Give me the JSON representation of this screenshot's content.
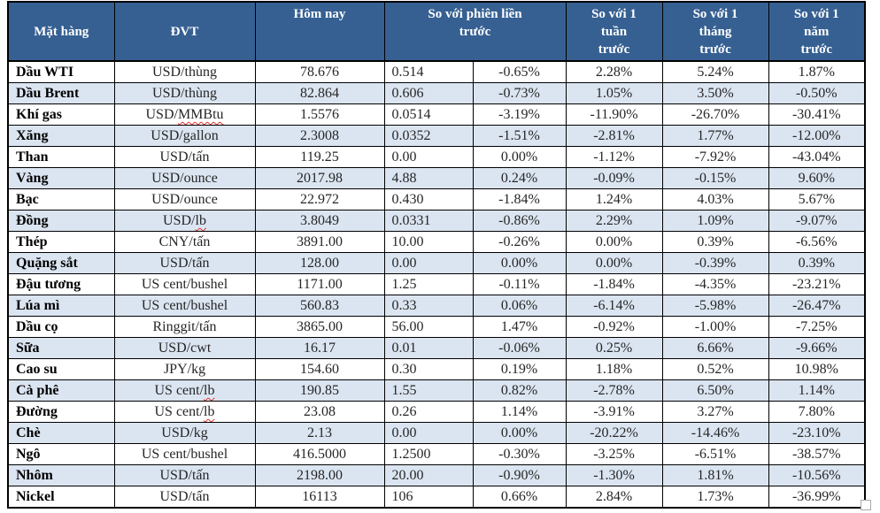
{
  "colors": {
    "header_bg": "#366092",
    "header_text": "#ffffff",
    "stripe_bg": "#dbe5f1",
    "row_bg": "#ffffff",
    "border": "#000000",
    "text": "#262626",
    "squiggle": "#e03030"
  },
  "table": {
    "columns": [
      {
        "key": "name",
        "label": "Mặt hàng",
        "colspan": 1,
        "valign": "middle"
      },
      {
        "key": "unit",
        "label": "ĐVT",
        "colspan": 1,
        "valign": "middle"
      },
      {
        "key": "today",
        "label": "Hôm nay",
        "colspan": 1,
        "valign": "top"
      },
      {
        "key": "change",
        "label": "So với phiên liền\ntrước",
        "colspan": 2,
        "valign": "top"
      },
      {
        "key": "week",
        "label": "So với 1\ntuần\ntrước",
        "colspan": 1,
        "valign": "top"
      },
      {
        "key": "month",
        "label": "So với 1\ntháng\ntrước",
        "colspan": 1,
        "valign": "top"
      },
      {
        "key": "year",
        "label": "So với 1\nnăm\ntrước",
        "colspan": 1,
        "valign": "top"
      }
    ],
    "rows": [
      {
        "name": "Dầu WTI",
        "unit": "USD/thùng",
        "today": "78.676",
        "change_abs": "0.514",
        "change_pct": "-0.65%",
        "week": "2.28%",
        "month": "5.24%",
        "year": "1.87%"
      },
      {
        "name": "Dầu Brent",
        "unit": "USD/thùng",
        "today": "82.864",
        "change_abs": "0.606",
        "change_pct": "-0.73%",
        "week": "1.05%",
        "month": "3.50%",
        "year": "-0.50%"
      },
      {
        "name": "Khí gas",
        "unit": "USD/MMBtu",
        "unit_flagged": "MMBtu",
        "today": "1.5576",
        "change_abs": "0.0514",
        "change_pct": "-3.19%",
        "week": "-11.90%",
        "month": "-26.70%",
        "year": "-30.41%"
      },
      {
        "name": "Xăng",
        "unit": "USD/gallon",
        "today": "2.3008",
        "change_abs": "0.0352",
        "change_pct": "-1.51%",
        "week": "-2.81%",
        "month": "1.77%",
        "year": "-12.00%"
      },
      {
        "name": "Than",
        "unit": "USD/tấn",
        "today": "119.25",
        "change_abs": "0.00",
        "change_pct": "0.00%",
        "week": "-1.12%",
        "month": "-7.92%",
        "year": "-43.04%"
      },
      {
        "name": "Vàng",
        "unit": "USD/ounce",
        "today": "2017.98",
        "change_abs": "4.88",
        "change_pct": "0.24%",
        "week": "-0.09%",
        "month": "-0.15%",
        "year": "9.60%"
      },
      {
        "name": "Bạc",
        "unit": "USD/ounce",
        "today": "22.972",
        "change_abs": "0.430",
        "change_pct": "-1.84%",
        "week": "1.24%",
        "month": "4.03%",
        "year": "5.67%"
      },
      {
        "name": "Đồng",
        "unit": "USD/lb",
        "unit_flagged": "lb",
        "today": "3.8049",
        "change_abs": "0.0331",
        "change_pct": "-0.86%",
        "week": "2.29%",
        "month": "1.09%",
        "year": "-9.07%"
      },
      {
        "name": "Thép",
        "unit": "CNY/tấn",
        "today": "3891.00",
        "change_abs": "10.00",
        "change_pct": "-0.26%",
        "week": "0.00%",
        "month": "0.39%",
        "year": "-6.56%"
      },
      {
        "name": "Quặng sắt",
        "unit": "USD/tấn",
        "today": "128.00",
        "change_abs": "0.00",
        "change_pct": "0.00%",
        "week": "0.00%",
        "month": "-0.39%",
        "year": "0.39%"
      },
      {
        "name": "Đậu tương",
        "unit": "US cent/bushel",
        "today": "1171.00",
        "change_abs": "1.25",
        "change_pct": "-0.11%",
        "week": "-1.84%",
        "month": "-4.35%",
        "year": "-23.21%"
      },
      {
        "name": "Lúa mì",
        "unit": "US cent/bushel",
        "today": "560.83",
        "change_abs": "0.33",
        "change_pct": "0.06%",
        "week": "-6.14%",
        "month": "-5.98%",
        "year": "-26.47%"
      },
      {
        "name": "Dầu cọ",
        "unit": "Ringgit/tấn",
        "today": "3865.00",
        "change_abs": "56.00",
        "change_pct": "1.47%",
        "week": "-0.92%",
        "month": "-1.00%",
        "year": "-7.25%"
      },
      {
        "name": "Sữa",
        "unit": "USD/cwt",
        "today": "16.17",
        "change_abs": "0.01",
        "change_pct": "-0.06%",
        "week": "0.25%",
        "month": "6.66%",
        "year": "-9.66%"
      },
      {
        "name": "Cao su",
        "unit": "JPY/kg",
        "today": "154.60",
        "change_abs": "0.30",
        "change_pct": "0.19%",
        "week": "1.18%",
        "month": "0.52%",
        "year": "10.98%"
      },
      {
        "name": "Cà phê",
        "unit": "US cent/lb",
        "unit_flagged": "lb",
        "today": "190.85",
        "change_abs": "1.55",
        "change_pct": "0.82%",
        "week": "-2.78%",
        "month": "6.50%",
        "year": "1.14%"
      },
      {
        "name": "Đường",
        "unit": "US cent/lb",
        "unit_flagged": "lb",
        "today": "23.08",
        "change_abs": "0.26",
        "change_pct": "1.14%",
        "week": "-3.91%",
        "month": "3.27%",
        "year": "7.80%"
      },
      {
        "name": "Chè",
        "unit": "USD/kg",
        "today": "2.13",
        "change_abs": "0.00",
        "change_pct": "0.00%",
        "week": "-20.22%",
        "month": "-14.46%",
        "year": "-23.10%"
      },
      {
        "name": "Ngô",
        "unit": "US cent/bushel",
        "today": "416.5000",
        "change_abs": "1.2500",
        "change_pct": "-0.30%",
        "week": "-3.25%",
        "month": "-6.51%",
        "year": "-38.57%"
      },
      {
        "name": "Nhôm",
        "unit": "USD/tấn",
        "today": "2198.00",
        "change_abs": "20.00",
        "change_pct": "-0.90%",
        "week": "-1.30%",
        "month": "1.81%",
        "year": "-10.56%"
      },
      {
        "name": "Nickel",
        "unit": "USD/tấn",
        "today": "16113",
        "change_abs": "106",
        "change_pct": "0.66%",
        "week": "2.84%",
        "month": "1.73%",
        "year": "-36.99%"
      }
    ]
  }
}
